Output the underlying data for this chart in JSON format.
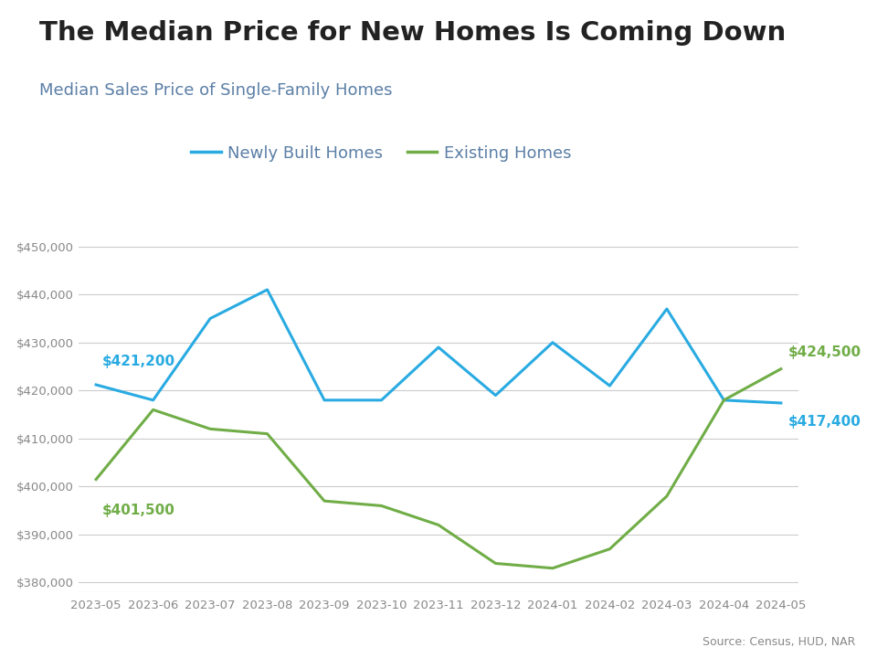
{
  "title": "The Median Price for New Homes Is Coming Down",
  "subtitle": "Median Sales Price of Single-Family Homes",
  "source": "Source: Census, HUD, NAR",
  "x_labels": [
    "2023-05",
    "2023-06",
    "2023-07",
    "2023-08",
    "2023-09",
    "2023-10",
    "2023-11",
    "2023-12",
    "2024-01",
    "2024-02",
    "2024-03",
    "2024-04",
    "2024-05"
  ],
  "newly_built": [
    421200,
    418000,
    435000,
    441000,
    418000,
    418000,
    429000,
    419000,
    430000,
    421000,
    437000,
    418000,
    417400
  ],
  "existing": [
    401500,
    416000,
    412000,
    411000,
    397000,
    396000,
    392000,
    384000,
    383000,
    387000,
    398000,
    418000,
    424500
  ],
  "newly_built_color": "#29ABE2",
  "existing_color": "#70AD47",
  "newly_built_label": "Newly Built Homes",
  "existing_label": "Existing Homes",
  "newly_built_start_label": "$421,200",
  "newly_built_end_label": "$417,400",
  "existing_start_label": "$401,500",
  "existing_end_label": "$424,500",
  "ylim": [
    378000,
    452000
  ],
  "yticks": [
    380000,
    390000,
    400000,
    410000,
    420000,
    430000,
    440000,
    450000
  ],
  "title_color": "#222222",
  "subtitle_color": "#5b7fa6",
  "background_color": "#ffffff",
  "top_bar_color": "#29ABE2",
  "top_bar_height": 0.012,
  "line_width": 2.2,
  "legend_text_color": "#5b7fa6",
  "grid_color": "#cccccc",
  "tick_color": "#888888",
  "source_color": "#888888"
}
